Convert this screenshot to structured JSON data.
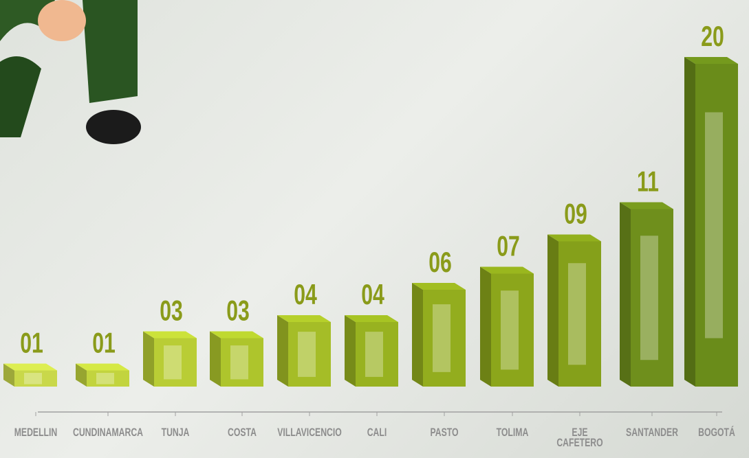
{
  "chart_data": {
    "type": "bar3d",
    "categories": [
      "MEDELLIN",
      "CUNDINAMARCA",
      "TUNJA",
      "COSTA",
      "VILLAVICENCIO",
      "CALI",
      "PASTO",
      "TOLIMA",
      "EJE CAFETERO",
      "SANTANDER",
      "BOGOTÁ"
    ],
    "values": [
      1,
      1,
      3,
      3,
      4,
      4,
      6,
      7,
      9,
      11,
      20
    ],
    "value_labels": [
      "01",
      "01",
      "03",
      "03",
      "04",
      "04",
      "06",
      "07",
      "09",
      "11",
      "20"
    ],
    "colors": [
      "#c9d84a",
      "#c2d43e",
      "#b9cd35",
      "#aec52c",
      "#a5bd27",
      "#98b220",
      "#93ad1e",
      "#8ca61b",
      "#85a01a",
      "#6f8f1c",
      "#6a8c1a"
    ],
    "label_color": "#8a9b1a"
  }
}
